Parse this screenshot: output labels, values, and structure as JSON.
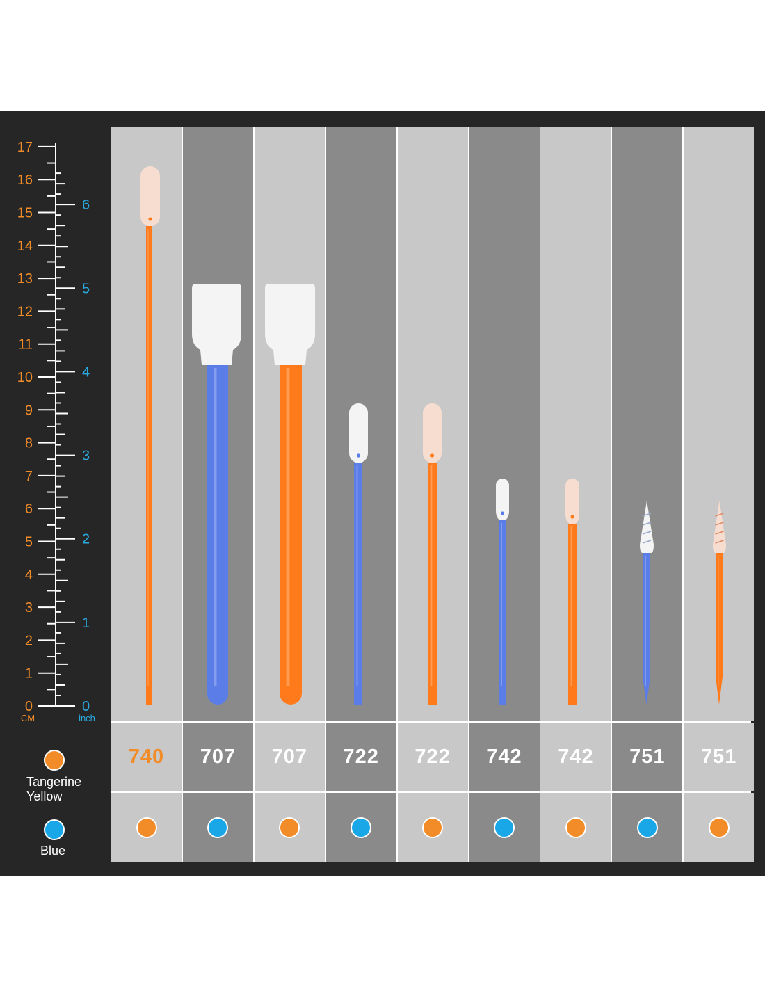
{
  "ruler": {
    "cm_labels": [
      "17",
      "16",
      "15",
      "14",
      "13",
      "12",
      "11",
      "10",
      "9",
      "8",
      "7",
      "6",
      "5",
      "4",
      "3",
      "2",
      "1",
      "0"
    ],
    "cm_unit": "CM",
    "inch_labels": [
      "6",
      "5",
      "4",
      "3",
      "2",
      "1",
      "0"
    ],
    "inch_unit": "inch"
  },
  "legend": {
    "tangerine_line1": "Tangerine",
    "tangerine_line2": "Yellow",
    "blue_label": "Blue"
  },
  "colors": {
    "tangerine": "#f28c28",
    "blue": "#1aa7e8",
    "cm_text": "#f28c28",
    "inch_text": "#2aa9e0",
    "handle_orange": "#ff7a1a",
    "handle_blue": "#5b7de8"
  },
  "swabs": [
    {
      "code": "740",
      "color": "tangerine",
      "tone": "light",
      "code_color": "orange"
    },
    {
      "code": "707",
      "color": "blue",
      "tone": "dark",
      "code_color": "white"
    },
    {
      "code": "707",
      "color": "tangerine",
      "tone": "light",
      "code_color": "white"
    },
    {
      "code": "722",
      "color": "blue",
      "tone": "dark",
      "code_color": "white"
    },
    {
      "code": "722",
      "color": "tangerine",
      "tone": "light",
      "code_color": "white"
    },
    {
      "code": "742",
      "color": "blue",
      "tone": "dark",
      "code_color": "white"
    },
    {
      "code": "742",
      "color": "tangerine",
      "tone": "light",
      "code_color": "white"
    },
    {
      "code": "751",
      "color": "blue",
      "tone": "dark",
      "code_color": "white"
    },
    {
      "code": "751",
      "color": "tangerine",
      "tone": "light",
      "code_color": "white"
    }
  ]
}
